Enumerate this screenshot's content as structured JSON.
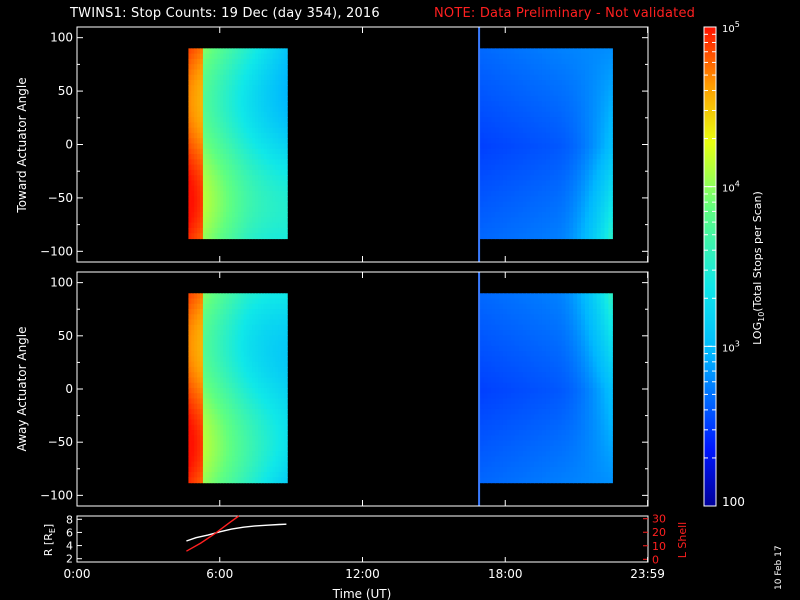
{
  "title": {
    "main": "TWINS1: Stop Counts: 19 Dec (day 354), 2016",
    "note": "NOTE: Data Preliminary - Not validated",
    "note_color": "#ff2020"
  },
  "stamp": "10 Feb 17",
  "chart_data": [
    {
      "type": "heatmap",
      "id": "toward",
      "ylabel": "Toward Actuator Angle",
      "ylim": [
        -110,
        110
      ],
      "y_ticks": [
        "100",
        "50",
        "0",
        "−50",
        "−100"
      ],
      "y_tick_values": [
        100,
        50,
        0,
        -50,
        -100
      ],
      "x_range_hours": [
        0,
        24
      ],
      "coverage_blocks": [
        {
          "start": "04:41",
          "end": "08:50",
          "angle_range": [
            -88,
            90
          ]
        },
        {
          "start": "16:55",
          "end": "22:30",
          "angle_range": [
            -88,
            90
          ]
        }
      ],
      "vertical_marker": "16:54"
    },
    {
      "type": "heatmap",
      "id": "away",
      "ylabel": "Away Actuator Angle",
      "ylim": [
        -110,
        110
      ],
      "y_ticks": [
        "100",
        "50",
        "0",
        "−50",
        "−100"
      ],
      "y_tick_values": [
        100,
        50,
        0,
        -50,
        -100
      ],
      "x_range_hours": [
        0,
        24
      ],
      "coverage_blocks": [
        {
          "start": "04:41",
          "end": "08:50",
          "angle_range": [
            -88,
            90
          ]
        },
        {
          "start": "16:55",
          "end": "22:30",
          "angle_range": [
            -88,
            90
          ]
        }
      ],
      "vertical_marker": "16:54"
    },
    {
      "type": "line",
      "id": "orbit",
      "ylabel": "R [R",
      "ylabel_sub": "E",
      "ylabel_end": "]",
      "ylabel_right": "L Shell",
      "y_ticks": [
        "8",
        "6",
        "4",
        "2"
      ],
      "y_tick_values": [
        8,
        6,
        4,
        2
      ],
      "ylim": [
        1.5,
        8.5
      ],
      "y2_ticks": [
        "30",
        "20",
        "10",
        "0"
      ],
      "y2_tick_values": [
        30,
        20,
        10,
        0
      ],
      "y2lim": [
        -2,
        32
      ],
      "x_ticks": [
        "0:00",
        "6:00",
        "12:00",
        "18:00",
        "23:59"
      ],
      "x_tick_hours": [
        0,
        6,
        12,
        18,
        23.983
      ],
      "xlabel": "Time (UT)",
      "series": [
        {
          "axis": "left",
          "color": "#ffffff",
          "x": [
            4.6,
            5.0,
            5.5,
            6.0,
            6.5,
            7.0,
            7.5,
            8.0,
            8.5,
            8.8
          ],
          "y": [
            4.7,
            5.2,
            5.6,
            6.1,
            6.5,
            6.8,
            7.0,
            7.1,
            7.2,
            7.25
          ]
        },
        {
          "axis": "right",
          "color": "#ff2020",
          "x": [
            4.6,
            5.2,
            5.8,
            6.4,
            6.8
          ],
          "y": [
            6,
            12,
            19,
            27,
            32
          ]
        }
      ]
    }
  ],
  "colorbar": {
    "label": "LOG",
    "label_sub": "10",
    "label_rest": "(Total Stops per Scan)",
    "tick_base": "10",
    "ticks": [
      {
        "exp": "5",
        "value": 5
      },
      {
        "exp": "4",
        "value": 4
      },
      {
        "exp": "3",
        "value": 3
      }
    ],
    "bottom_label": "100",
    "range_log": [
      2,
      5
    ]
  }
}
